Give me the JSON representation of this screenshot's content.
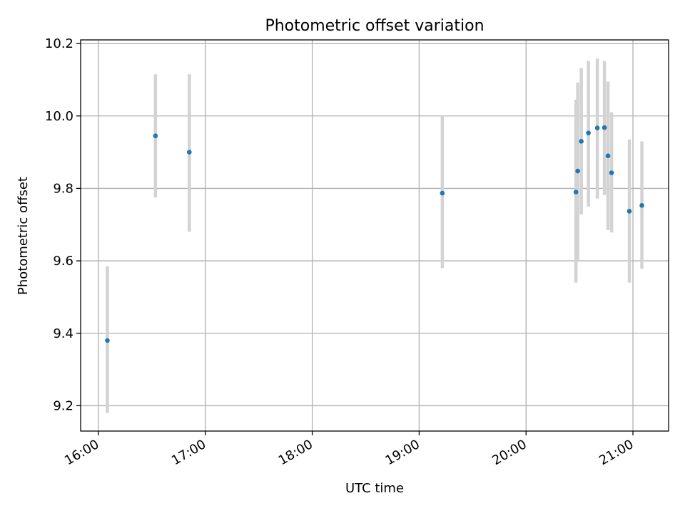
{
  "chart_data": {
    "type": "scatter",
    "title": "Photometric offset variation",
    "xlabel": "UTC time",
    "ylabel": "Photometric offset",
    "xlim": [
      "15:50",
      "21:20"
    ],
    "ylim": [
      9.13,
      10.21
    ],
    "grid": true,
    "x_ticks": [
      "16:00",
      "17:00",
      "18:00",
      "19:00",
      "20:00",
      "21:00"
    ],
    "y_ticks": [
      9.2,
      9.4,
      9.6,
      9.8,
      10.0,
      10.2
    ],
    "y_tick_labels": [
      "9.2",
      "9.4",
      "9.6",
      "9.8",
      "10.0",
      "10.2"
    ],
    "point_color": "#1f77b4",
    "errorbar_color": "#d3d3d3",
    "series": [
      {
        "points": [
          {
            "time": "16:05",
            "y": 9.38,
            "low": 9.18,
            "high": 9.585
          },
          {
            "time": "16:32",
            "y": 9.945,
            "low": 9.775,
            "high": 10.115
          },
          {
            "time": "16:51",
            "y": 9.9,
            "low": 9.68,
            "high": 10.115
          },
          {
            "time": "19:13",
            "y": 9.787,
            "low": 9.58,
            "high": 10.0
          },
          {
            "time": "20:28",
            "y": 9.79,
            "low": 9.54,
            "high": 10.045
          },
          {
            "time": "20:29",
            "y": 9.848,
            "low": 9.6,
            "high": 10.092
          },
          {
            "time": "20:31",
            "y": 9.93,
            "low": 9.728,
            "high": 10.132
          },
          {
            "time": "20:35",
            "y": 9.953,
            "low": 9.75,
            "high": 10.152
          },
          {
            "time": "20:40",
            "y": 9.967,
            "low": 9.772,
            "high": 10.158
          },
          {
            "time": "20:44",
            "y": 9.968,
            "low": 9.782,
            "high": 10.152
          },
          {
            "time": "20:46",
            "y": 9.89,
            "low": 9.685,
            "high": 10.095
          },
          {
            "time": "20:48",
            "y": 9.843,
            "low": 9.678,
            "high": 10.01
          },
          {
            "time": "20:58",
            "y": 9.737,
            "low": 9.54,
            "high": 9.935
          },
          {
            "time": "21:05",
            "y": 9.753,
            "low": 9.578,
            "high": 9.93
          }
        ]
      }
    ]
  }
}
